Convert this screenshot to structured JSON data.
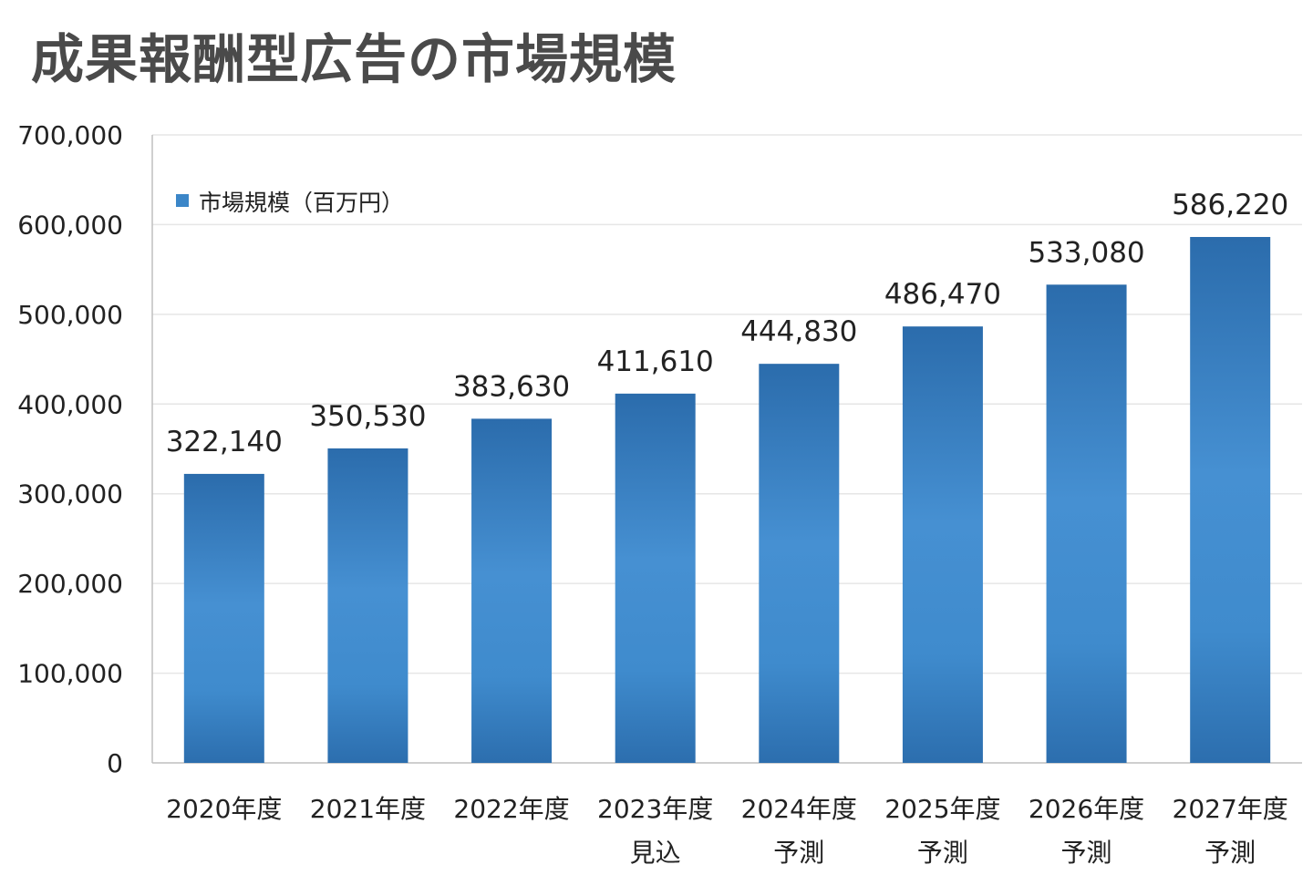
{
  "chart_data": {
    "type": "bar",
    "title": "成果報酬型広告の市場規模",
    "categories": [
      "2020年度",
      "2021年度",
      "2022年度",
      "2023年度",
      "2024年度",
      "2025年度",
      "2026年度",
      "2027年度"
    ],
    "category_notes": [
      "",
      "",
      "",
      "見込",
      "予測",
      "予測",
      "予測",
      "予測"
    ],
    "series": [
      {
        "name": "市場規模（百万円）",
        "values": [
          322140,
          350530,
          383630,
          411610,
          444830,
          486470,
          533080,
          586220
        ],
        "value_labels": [
          "322,140",
          "350,530",
          "383,630",
          "411,610",
          "444,830",
          "486,470",
          "533,080",
          "586,220"
        ],
        "color": "#3b86c8"
      }
    ],
    "ylim": [
      0,
      700000
    ],
    "yticks": [
      0,
      100000,
      200000,
      300000,
      400000,
      500000,
      600000,
      700000
    ],
    "ytick_labels": [
      "0",
      "100,000",
      "200,000",
      "300,000",
      "400,000",
      "500,000",
      "600,000",
      "700,000"
    ],
    "xlabel": "",
    "ylabel": "",
    "grid": true,
    "legend_position": "top-left",
    "colors": {
      "bar_edge": "#2a6aaa",
      "bar_center": "#448ed0",
      "title": "#4a4a4a",
      "grid": "#e6e6e6"
    }
  }
}
